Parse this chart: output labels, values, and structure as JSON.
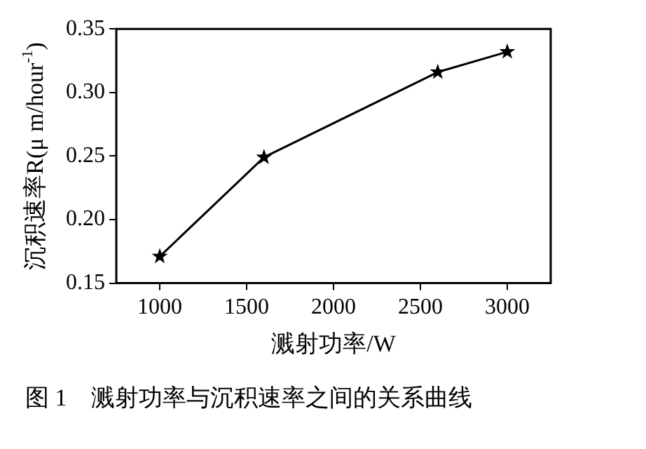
{
  "chart_data": {
    "type": "line",
    "xlabel": "溅射功率/W",
    "ylabel": "沉积速率R(μ m/hour$^{-1}$)",
    "annotations": [
      "图 1　溅射功率与沉积速率之间的关系曲线"
    ],
    "x": [
      1000,
      1600,
      2600,
      3000
    ],
    "series": [
      {
        "color": "#000000",
        "values": [
          0.171,
          0.249,
          0.316,
          0.332
        ]
      }
    ],
    "xlim": [
      750,
      3250
    ],
    "xticks": [
      1000,
      1500,
      2000,
      2500,
      3000
    ],
    "ylim": [
      0.15,
      0.35
    ],
    "yticks": [
      0.15,
      {
        "value": 0.2,
        "label": "0.20"
      },
      0.25,
      {
        "value": 0.3,
        "label": "0.30"
      },
      0.35
    ],
    "grid": false,
    "legend": false,
    "marker": "star",
    "line_style": "solid"
  }
}
